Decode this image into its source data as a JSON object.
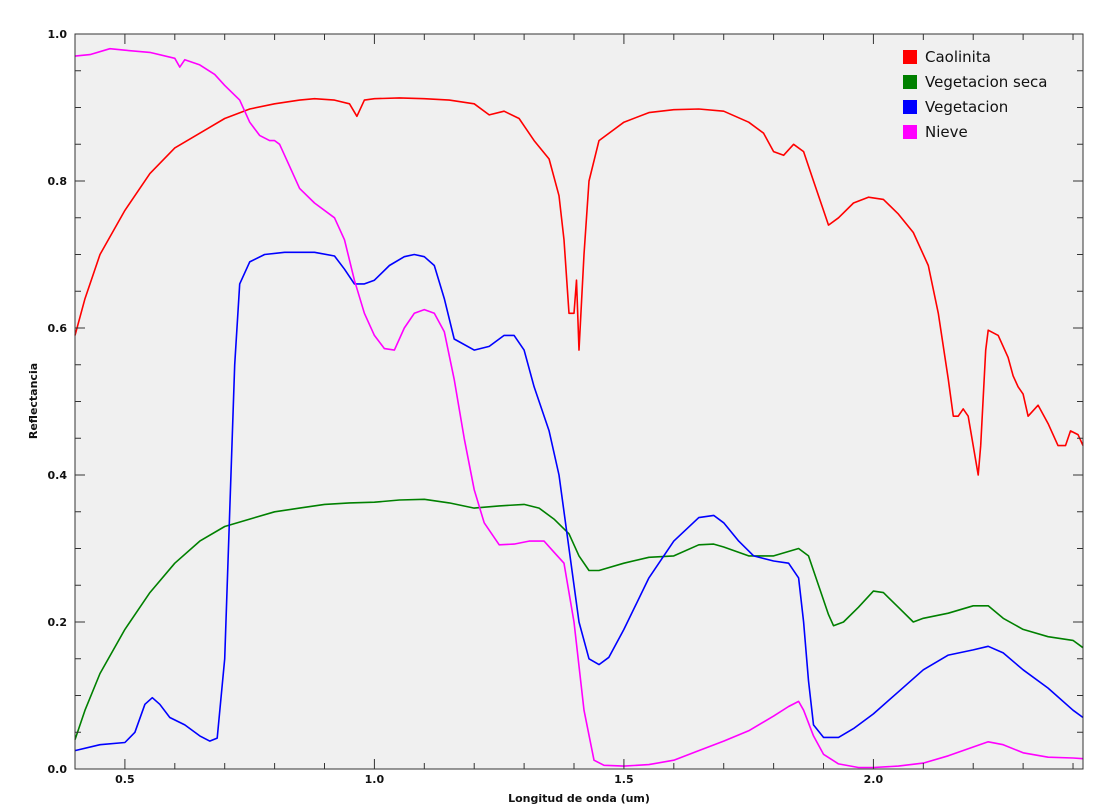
{
  "chart_data": {
    "type": "line",
    "title": "",
    "xlabel": "Longitud de onda (um)",
    "ylabel": "Reflectancia",
    "xlim": [
      0.4,
      2.42
    ],
    "ylim": [
      0.0,
      1.0
    ],
    "xticks": [
      0.5,
      1.0,
      1.5,
      2.0
    ],
    "xtick_labels": [
      "0.5",
      "1.0",
      "1.5",
      "2.0"
    ],
    "yticks": [
      0.0,
      0.2,
      0.4,
      0.6,
      0.8,
      1.0
    ],
    "ytick_labels": [
      "0.0",
      "0.2",
      "0.4",
      "0.6",
      "0.8",
      "1.0"
    ],
    "grid": false,
    "legend_position": "top-right",
    "background_color": "#f0f0f0",
    "series": [
      {
        "name": "Caolinita",
        "color": "#ff0000",
        "points": [
          [
            0.4,
            0.59
          ],
          [
            0.42,
            0.64
          ],
          [
            0.45,
            0.7
          ],
          [
            0.5,
            0.76
          ],
          [
            0.55,
            0.81
          ],
          [
            0.6,
            0.845
          ],
          [
            0.65,
            0.865
          ],
          [
            0.7,
            0.885
          ],
          [
            0.75,
            0.898
          ],
          [
            0.8,
            0.905
          ],
          [
            0.85,
            0.91
          ],
          [
            0.88,
            0.912
          ],
          [
            0.92,
            0.91
          ],
          [
            0.95,
            0.905
          ],
          [
            0.965,
            0.888
          ],
          [
            0.98,
            0.91
          ],
          [
            1.0,
            0.912
          ],
          [
            1.05,
            0.913
          ],
          [
            1.1,
            0.912
          ],
          [
            1.15,
            0.91
          ],
          [
            1.2,
            0.905
          ],
          [
            1.23,
            0.89
          ],
          [
            1.26,
            0.895
          ],
          [
            1.29,
            0.885
          ],
          [
            1.32,
            0.855
          ],
          [
            1.35,
            0.83
          ],
          [
            1.37,
            0.78
          ],
          [
            1.38,
            0.72
          ],
          [
            1.39,
            0.62
          ],
          [
            1.4,
            0.62
          ],
          [
            1.405,
            0.665
          ],
          [
            1.41,
            0.57
          ],
          [
            1.42,
            0.7
          ],
          [
            1.43,
            0.8
          ],
          [
            1.45,
            0.855
          ],
          [
            1.5,
            0.88
          ],
          [
            1.55,
            0.893
          ],
          [
            1.6,
            0.897
          ],
          [
            1.65,
            0.898
          ],
          [
            1.7,
            0.895
          ],
          [
            1.75,
            0.88
          ],
          [
            1.78,
            0.865
          ],
          [
            1.8,
            0.84
          ],
          [
            1.82,
            0.835
          ],
          [
            1.84,
            0.85
          ],
          [
            1.86,
            0.84
          ],
          [
            1.88,
            0.8
          ],
          [
            1.9,
            0.76
          ],
          [
            1.91,
            0.74
          ],
          [
            1.93,
            0.75
          ],
          [
            1.96,
            0.77
          ],
          [
            1.99,
            0.778
          ],
          [
            2.02,
            0.775
          ],
          [
            2.05,
            0.755
          ],
          [
            2.08,
            0.73
          ],
          [
            2.11,
            0.685
          ],
          [
            2.13,
            0.62
          ],
          [
            2.15,
            0.53
          ],
          [
            2.16,
            0.48
          ],
          [
            2.17,
            0.48
          ],
          [
            2.18,
            0.49
          ],
          [
            2.19,
            0.48
          ],
          [
            2.2,
            0.44
          ],
          [
            2.21,
            0.4
          ],
          [
            2.215,
            0.44
          ],
          [
            2.225,
            0.57
          ],
          [
            2.23,
            0.597
          ],
          [
            2.25,
            0.59
          ],
          [
            2.27,
            0.56
          ],
          [
            2.28,
            0.535
          ],
          [
            2.29,
            0.52
          ],
          [
            2.3,
            0.51
          ],
          [
            2.31,
            0.48
          ],
          [
            2.33,
            0.495
          ],
          [
            2.35,
            0.47
          ],
          [
            2.37,
            0.44
          ],
          [
            2.385,
            0.44
          ],
          [
            2.395,
            0.46
          ],
          [
            2.41,
            0.455
          ],
          [
            2.42,
            0.44
          ]
        ]
      },
      {
        "name": "Vegetacion seca",
        "color": "#008000",
        "points": [
          [
            0.4,
            0.04
          ],
          [
            0.42,
            0.08
          ],
          [
            0.45,
            0.13
          ],
          [
            0.5,
            0.19
          ],
          [
            0.55,
            0.24
          ],
          [
            0.6,
            0.28
          ],
          [
            0.65,
            0.31
          ],
          [
            0.7,
            0.33
          ],
          [
            0.75,
            0.34
          ],
          [
            0.8,
            0.35
          ],
          [
            0.85,
            0.355
          ],
          [
            0.9,
            0.36
          ],
          [
            0.95,
            0.362
          ],
          [
            1.0,
            0.363
          ],
          [
            1.05,
            0.366
          ],
          [
            1.1,
            0.367
          ],
          [
            1.15,
            0.362
          ],
          [
            1.2,
            0.355
          ],
          [
            1.25,
            0.358
          ],
          [
            1.3,
            0.36
          ],
          [
            1.33,
            0.355
          ],
          [
            1.36,
            0.34
          ],
          [
            1.39,
            0.32
          ],
          [
            1.41,
            0.29
          ],
          [
            1.43,
            0.27
          ],
          [
            1.45,
            0.27
          ],
          [
            1.5,
            0.28
          ],
          [
            1.55,
            0.288
          ],
          [
            1.6,
            0.29
          ],
          [
            1.65,
            0.305
          ],
          [
            1.68,
            0.306
          ],
          [
            1.7,
            0.302
          ],
          [
            1.75,
            0.29
          ],
          [
            1.8,
            0.29
          ],
          [
            1.85,
            0.3
          ],
          [
            1.87,
            0.29
          ],
          [
            1.89,
            0.25
          ],
          [
            1.91,
            0.21
          ],
          [
            1.92,
            0.195
          ],
          [
            1.94,
            0.2
          ],
          [
            1.97,
            0.22
          ],
          [
            2.0,
            0.242
          ],
          [
            2.02,
            0.24
          ],
          [
            2.05,
            0.22
          ],
          [
            2.08,
            0.2
          ],
          [
            2.1,
            0.205
          ],
          [
            2.15,
            0.212
          ],
          [
            2.2,
            0.222
          ],
          [
            2.23,
            0.222
          ],
          [
            2.26,
            0.205
          ],
          [
            2.3,
            0.19
          ],
          [
            2.35,
            0.18
          ],
          [
            2.4,
            0.175
          ],
          [
            2.42,
            0.165
          ]
        ]
      },
      {
        "name": "Vegetacion",
        "color": "#0000ff",
        "points": [
          [
            0.4,
            0.025
          ],
          [
            0.45,
            0.033
          ],
          [
            0.5,
            0.036
          ],
          [
            0.52,
            0.05
          ],
          [
            0.54,
            0.088
          ],
          [
            0.555,
            0.097
          ],
          [
            0.57,
            0.088
          ],
          [
            0.59,
            0.07
          ],
          [
            0.62,
            0.06
          ],
          [
            0.65,
            0.045
          ],
          [
            0.67,
            0.038
          ],
          [
            0.685,
            0.042
          ],
          [
            0.7,
            0.15
          ],
          [
            0.71,
            0.35
          ],
          [
            0.72,
            0.55
          ],
          [
            0.73,
            0.66
          ],
          [
            0.75,
            0.69
          ],
          [
            0.78,
            0.7
          ],
          [
            0.82,
            0.703
          ],
          [
            0.85,
            0.703
          ],
          [
            0.88,
            0.703
          ],
          [
            0.92,
            0.698
          ],
          [
            0.94,
            0.68
          ],
          [
            0.96,
            0.66
          ],
          [
            0.98,
            0.66
          ],
          [
            1.0,
            0.665
          ],
          [
            1.03,
            0.685
          ],
          [
            1.06,
            0.697
          ],
          [
            1.08,
            0.7
          ],
          [
            1.1,
            0.697
          ],
          [
            1.12,
            0.685
          ],
          [
            1.14,
            0.64
          ],
          [
            1.16,
            0.585
          ],
          [
            1.2,
            0.57
          ],
          [
            1.23,
            0.575
          ],
          [
            1.26,
            0.59
          ],
          [
            1.28,
            0.59
          ],
          [
            1.3,
            0.57
          ],
          [
            1.32,
            0.52
          ],
          [
            1.35,
            0.46
          ],
          [
            1.37,
            0.4
          ],
          [
            1.39,
            0.3
          ],
          [
            1.41,
            0.2
          ],
          [
            1.43,
            0.15
          ],
          [
            1.45,
            0.142
          ],
          [
            1.47,
            0.152
          ],
          [
            1.5,
            0.19
          ],
          [
            1.55,
            0.26
          ],
          [
            1.6,
            0.31
          ],
          [
            1.65,
            0.342
          ],
          [
            1.68,
            0.345
          ],
          [
            1.7,
            0.335
          ],
          [
            1.73,
            0.31
          ],
          [
            1.76,
            0.29
          ],
          [
            1.8,
            0.283
          ],
          [
            1.83,
            0.28
          ],
          [
            1.85,
            0.26
          ],
          [
            1.86,
            0.2
          ],
          [
            1.87,
            0.12
          ],
          [
            1.88,
            0.06
          ],
          [
            1.9,
            0.043
          ],
          [
            1.93,
            0.043
          ],
          [
            1.96,
            0.055
          ],
          [
            2.0,
            0.075
          ],
          [
            2.05,
            0.105
          ],
          [
            2.1,
            0.135
          ],
          [
            2.15,
            0.155
          ],
          [
            2.2,
            0.162
          ],
          [
            2.23,
            0.167
          ],
          [
            2.26,
            0.158
          ],
          [
            2.3,
            0.135
          ],
          [
            2.35,
            0.11
          ],
          [
            2.4,
            0.08
          ],
          [
            2.42,
            0.07
          ]
        ]
      },
      {
        "name": "Nieve",
        "color": "#ff00ff",
        "points": [
          [
            0.4,
            0.97
          ],
          [
            0.43,
            0.972
          ],
          [
            0.47,
            0.98
          ],
          [
            0.5,
            0.978
          ],
          [
            0.55,
            0.975
          ],
          [
            0.6,
            0.967
          ],
          [
            0.61,
            0.955
          ],
          [
            0.62,
            0.965
          ],
          [
            0.65,
            0.958
          ],
          [
            0.68,
            0.945
          ],
          [
            0.7,
            0.93
          ],
          [
            0.73,
            0.91
          ],
          [
            0.75,
            0.88
          ],
          [
            0.77,
            0.862
          ],
          [
            0.79,
            0.855
          ],
          [
            0.8,
            0.855
          ],
          [
            0.81,
            0.85
          ],
          [
            0.83,
            0.82
          ],
          [
            0.85,
            0.79
          ],
          [
            0.88,
            0.77
          ],
          [
            0.92,
            0.75
          ],
          [
            0.94,
            0.72
          ],
          [
            0.96,
            0.665
          ],
          [
            0.98,
            0.62
          ],
          [
            1.0,
            0.59
          ],
          [
            1.02,
            0.572
          ],
          [
            1.04,
            0.57
          ],
          [
            1.06,
            0.6
          ],
          [
            1.08,
            0.62
          ],
          [
            1.1,
            0.625
          ],
          [
            1.12,
            0.62
          ],
          [
            1.14,
            0.595
          ],
          [
            1.16,
            0.53
          ],
          [
            1.18,
            0.45
          ],
          [
            1.2,
            0.38
          ],
          [
            1.22,
            0.335
          ],
          [
            1.25,
            0.305
          ],
          [
            1.28,
            0.306
          ],
          [
            1.31,
            0.31
          ],
          [
            1.34,
            0.31
          ],
          [
            1.36,
            0.295
          ],
          [
            1.38,
            0.28
          ],
          [
            1.4,
            0.2
          ],
          [
            1.42,
            0.08
          ],
          [
            1.44,
            0.012
          ],
          [
            1.46,
            0.005
          ],
          [
            1.5,
            0.004
          ],
          [
            1.55,
            0.006
          ],
          [
            1.6,
            0.012
          ],
          [
            1.65,
            0.025
          ],
          [
            1.7,
            0.038
          ],
          [
            1.75,
            0.052
          ],
          [
            1.8,
            0.072
          ],
          [
            1.83,
            0.085
          ],
          [
            1.85,
            0.092
          ],
          [
            1.86,
            0.08
          ],
          [
            1.88,
            0.045
          ],
          [
            1.9,
            0.02
          ],
          [
            1.93,
            0.007
          ],
          [
            1.97,
            0.002
          ],
          [
            2.0,
            0.002
          ],
          [
            2.05,
            0.004
          ],
          [
            2.1,
            0.008
          ],
          [
            2.15,
            0.018
          ],
          [
            2.2,
            0.03
          ],
          [
            2.23,
            0.037
          ],
          [
            2.26,
            0.033
          ],
          [
            2.3,
            0.022
          ],
          [
            2.35,
            0.016
          ],
          [
            2.4,
            0.015
          ],
          [
            2.42,
            0.014
          ]
        ]
      }
    ]
  }
}
